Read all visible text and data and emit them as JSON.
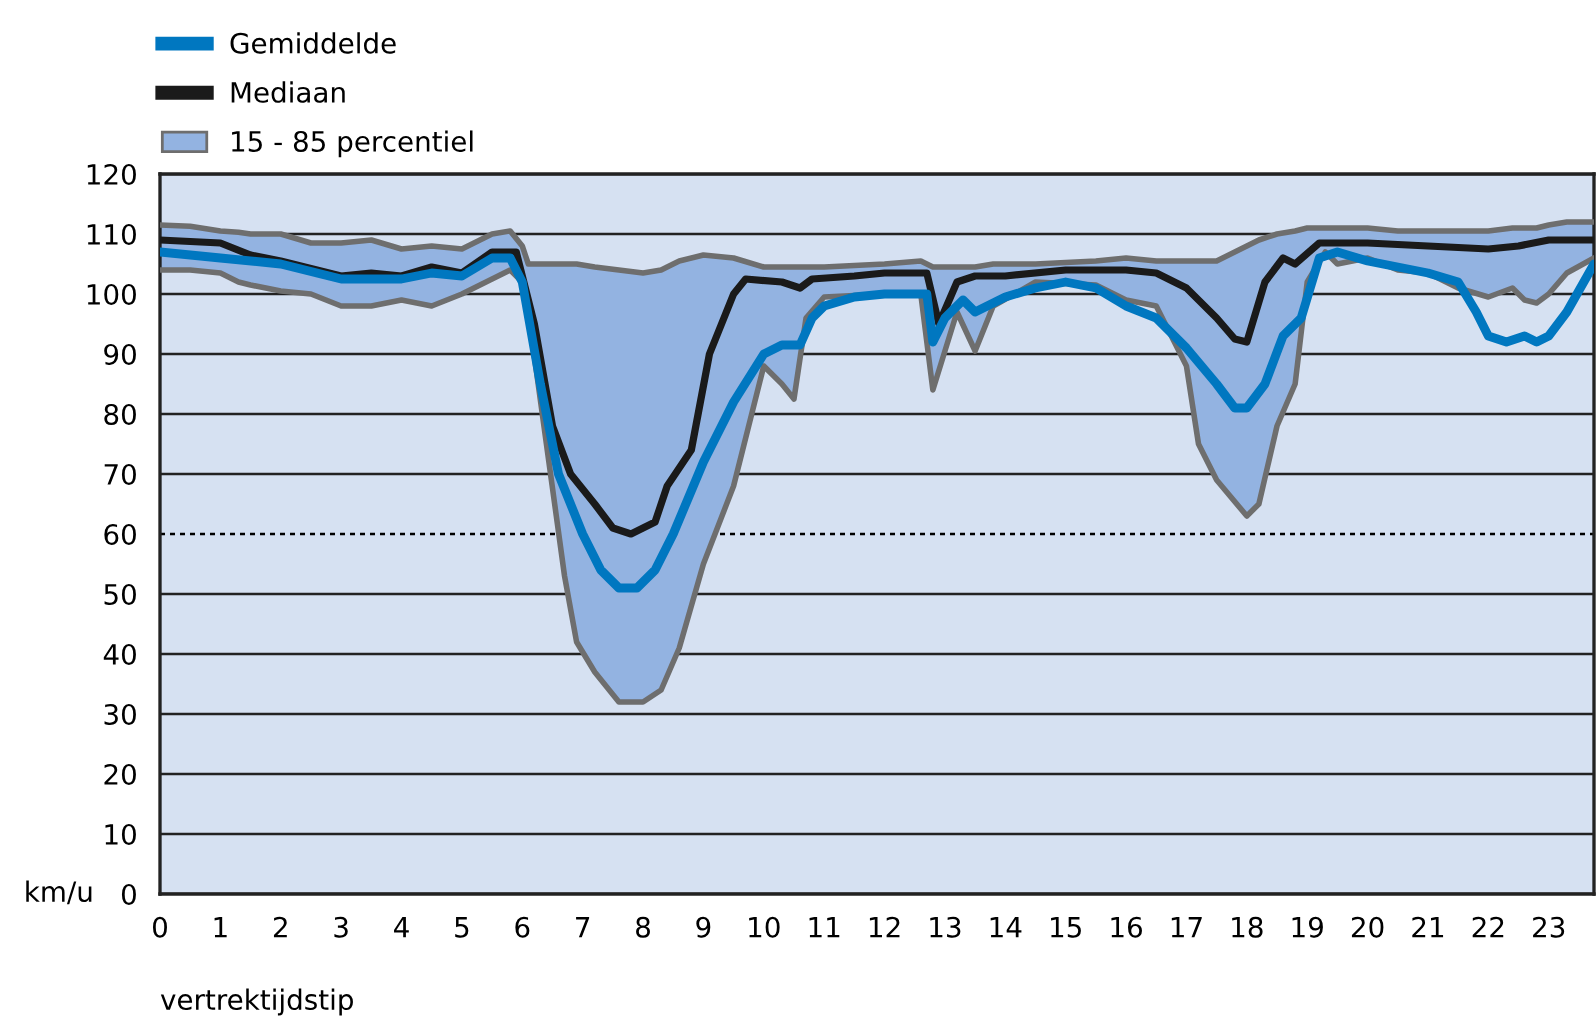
{
  "chart_data": {
    "type": "line",
    "xlabel": "vertrektijdstip",
    "ylabel": "km/u",
    "xlim": [
      0,
      23.75
    ],
    "xticks": [
      0,
      1,
      2,
      3,
      4,
      5,
      6,
      7,
      8,
      9,
      10,
      11,
      12,
      13,
      14,
      15,
      16,
      17,
      18,
      19,
      20,
      21,
      22,
      23
    ],
    "ylim": [
      0,
      120
    ],
    "yticks": [
      0,
      10,
      20,
      30,
      40,
      50,
      60,
      70,
      80,
      90,
      100,
      110,
      120
    ],
    "grid": "y",
    "legend": "top left",
    "ref_lines": [
      {
        "axis": "y",
        "value": 60,
        "line_style": "dotted",
        "color": "#000000"
      }
    ],
    "series": [
      {
        "color": "#6e6e6e",
        "x": [
          0,
          0.5,
          1,
          1.3,
          1.5,
          2,
          2.5,
          3,
          3.5,
          4,
          4.5,
          5,
          5.5,
          5.8,
          6,
          6.1,
          6.4,
          6.7,
          6.9,
          7.2,
          7.6,
          8,
          8.3,
          8.6,
          9,
          9.5,
          10,
          10.3,
          10.5,
          10.7,
          11,
          12,
          12.6,
          12.8,
          13.2,
          13.5,
          13.8,
          14.5,
          15.5,
          16,
          16.5,
          17,
          17.2,
          17.5,
          18,
          18.2,
          18.5,
          18.8,
          19,
          19.3,
          19.5,
          20,
          20.5,
          21,
          21.5,
          22,
          22.4,
          22.6,
          22.8,
          23,
          23.3,
          23.75
        ],
        "values": [
          104,
          104,
          103.5,
          102,
          101.5,
          100.5,
          100,
          98,
          98,
          99,
          98,
          100,
          102.5,
          104,
          102,
          97,
          75,
          53,
          42,
          37,
          32,
          32,
          34,
          41,
          55,
          68,
          88,
          85,
          82.5,
          96,
          99.5,
          100,
          100,
          84,
          97,
          90.5,
          98,
          102,
          101.5,
          99,
          98,
          88,
          75,
          69,
          63,
          65,
          78,
          85,
          102,
          107,
          105,
          106,
          104,
          103.5,
          101,
          99.5,
          101,
          99,
          98.5,
          100,
          103.5,
          106
        ]
      },
      {
        "type": "area",
        "name": "15 - 85 percentiel",
        "color": "#93b3e1",
        "x": [
          0,
          0.5,
          1,
          1.3,
          1.5,
          2,
          2.5,
          3,
          3.5,
          4,
          4.5,
          5,
          5.5,
          5.8,
          6,
          6.1,
          6.4,
          6.7,
          6.9,
          7.2,
          7.6,
          8,
          8.3,
          8.6,
          9,
          9.5,
          10,
          10.3,
          10.5,
          10.7,
          11,
          12,
          12.6,
          12.8,
          13.2,
          13.5,
          13.8,
          14.5,
          15.5,
          16,
          16.5,
          17,
          17.2,
          17.5,
          18,
          18.2,
          18.5,
          18.8,
          19,
          19.3,
          19.5,
          20,
          20.5,
          21,
          21.5,
          22,
          22.4,
          22.6,
          22.8,
          23,
          23.3,
          23.75
        ],
        "values": [
          111.5,
          111.3,
          110.5,
          110.3,
          110,
          110,
          108.5,
          108.5,
          109,
          107.5,
          108,
          107.5,
          110,
          110.5,
          108,
          105,
          105,
          105,
          105,
          104.5,
          104,
          103.5,
          104,
          105.5,
          106.5,
          106,
          104.5,
          104.5,
          104.5,
          104.5,
          104.5,
          105,
          105.5,
          104.5,
          104.5,
          104.5,
          105,
          105,
          105.5,
          106,
          105.5,
          105.5,
          105.5,
          105.5,
          108,
          109,
          110,
          110.5,
          111,
          111,
          111,
          111,
          110.5,
          110.5,
          110.5,
          110.5,
          111,
          111,
          111,
          111.5,
          112,
          112
        ]
      },
      {
        "name": "Mediaan",
        "color": "#1a1a1a",
        "x": [
          0,
          1,
          1.5,
          2,
          3,
          3.5,
          4,
          4.5,
          5,
          5.5,
          5.9,
          6.2,
          6.5,
          6.8,
          7.2,
          7.5,
          7.8,
          8,
          8.2,
          8.4,
          8.8,
          9.1,
          9.5,
          9.7,
          10.3,
          10.6,
          10.8,
          11.5,
          12,
          12.7,
          12.9,
          13.2,
          13.5,
          14,
          15,
          16,
          16.5,
          17,
          17.5,
          17.8,
          18,
          18.3,
          18.6,
          18.8,
          19.2,
          20,
          21,
          22,
          22.5,
          23,
          23.75
        ],
        "values": [
          109,
          108.5,
          106.5,
          105.5,
          103,
          103.5,
          103,
          104.5,
          103.5,
          107,
          107,
          95,
          78,
          70,
          65,
          61,
          60,
          61,
          62,
          68,
          74,
          90,
          100,
          102.5,
          102,
          101,
          102.5,
          103,
          103.5,
          103.5,
          95,
          102,
          103,
          103,
          104,
          104,
          103.5,
          101,
          96,
          92.5,
          92,
          102,
          106,
          105,
          108.5,
          108.5,
          108,
          107.5,
          108,
          109,
          109
        ]
      },
      {
        "name": "Gemiddelde",
        "color": "#0077c0",
        "x": [
          0,
          1,
          2,
          3,
          3.5,
          4,
          4.5,
          5,
          5.5,
          5.8,
          6,
          6.3,
          6.6,
          7,
          7.3,
          7.6,
          7.9,
          8.2,
          8.5,
          9,
          9.5,
          10,
          10.3,
          10.6,
          10.8,
          11,
          11.5,
          12,
          12.5,
          12.7,
          12.8,
          13,
          13.3,
          13.5,
          14,
          14.5,
          15,
          15.5,
          16,
          16.5,
          17,
          17.5,
          17.8,
          18,
          18.3,
          18.6,
          18.9,
          19.2,
          19.5,
          20,
          20.5,
          21,
          21.5,
          21.8,
          22,
          22.3,
          22.6,
          22.8,
          23,
          23.3,
          23.75
        ],
        "values": [
          107,
          106,
          105,
          102.5,
          102.5,
          102.5,
          103.5,
          103,
          106,
          106,
          102,
          85,
          70,
          60,
          54,
          51,
          51,
          54,
          60,
          72,
          82,
          90,
          91.5,
          91.5,
          96,
          98,
          99.5,
          100,
          100,
          100,
          92,
          96,
          99,
          97,
          99.5,
          101,
          102,
          101,
          98,
          96,
          91,
          85,
          81,
          81,
          85,
          93,
          96,
          106,
          107,
          105.5,
          104.5,
          103.5,
          102,
          97,
          93,
          92,
          93,
          92,
          93,
          97,
          105
        ]
      }
    ]
  }
}
